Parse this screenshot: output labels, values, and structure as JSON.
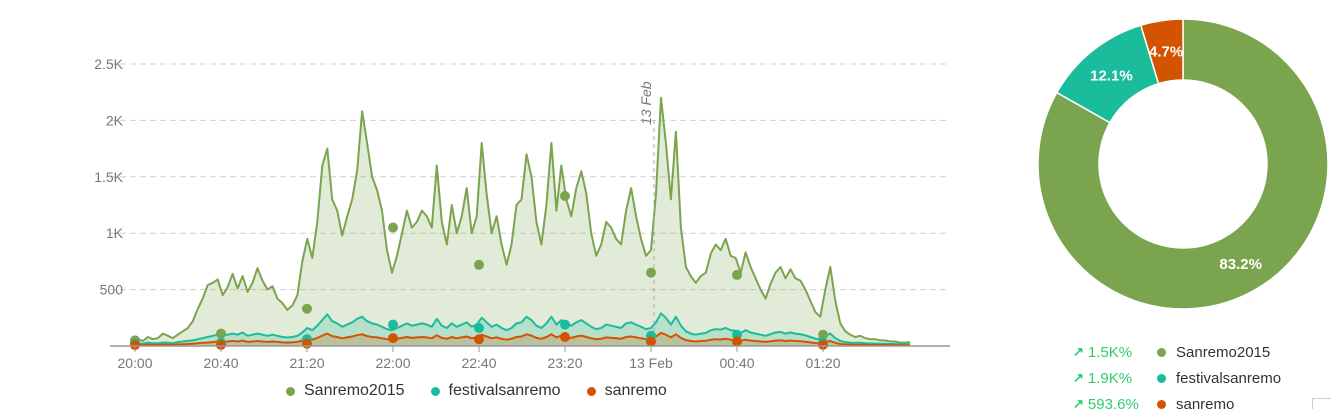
{
  "chart_data": [
    {
      "type": "area",
      "x_ticks": [
        "20:00",
        "20:40",
        "21:20",
        "22:00",
        "22:40",
        "23:20",
        "13 Feb",
        "00:40",
        "01:20"
      ],
      "y_ticks": [
        "500",
        "1K",
        "1.5K",
        "2K",
        "2.5K"
      ],
      "ylim": [
        0,
        2500
      ],
      "grid": true,
      "annotation": "13 Feb",
      "legend_position": "bottom",
      "series": [
        {
          "name": "Sanremo2015",
          "color": "#7ba44f",
          "values": [
            40,
            60,
            45,
            80,
            60,
            70,
            110,
            90,
            70,
            100,
            130,
            160,
            220,
            330,
            420,
            540,
            560,
            590,
            450,
            520,
            640,
            510,
            620,
            480,
            560,
            690,
            580,
            500,
            530,
            420,
            380,
            320,
            360,
            450,
            750,
            950,
            780,
            1100,
            1600,
            1750,
            1300,
            1200,
            980,
            1150,
            1300,
            1550,
            2080,
            1800,
            1500,
            1380,
            1200,
            850,
            650,
            800,
            1000,
            1200,
            1050,
            1100,
            1200,
            1150,
            1050,
            1600,
            1100,
            900,
            1250,
            1000,
            1150,
            1400,
            1000,
            1150,
            1800,
            1350,
            1000,
            1150,
            900,
            720,
            900,
            1250,
            1300,
            1700,
            1500,
            1100,
            900,
            1250,
            1800,
            1200,
            1600,
            1300,
            1150,
            1400,
            1550,
            1350,
            1000,
            800,
            900,
            1100,
            1050,
            950,
            900,
            1200,
            1400,
            1150,
            950,
            800,
            850,
            1350,
            2200,
            1800,
            1300,
            1900,
            1050,
            700,
            620,
            560,
            620,
            650,
            820,
            900,
            850,
            950,
            800,
            780,
            650,
            830,
            700,
            600,
            500,
            420,
            550,
            650,
            700,
            600,
            680,
            600,
            580,
            500,
            400,
            300,
            260,
            500,
            700,
            400,
            200,
            130,
            100,
            80,
            90,
            70,
            60,
            60,
            50,
            50,
            40,
            40,
            30,
            30,
            35
          ]
        },
        {
          "name": "festivalsanremo",
          "color": "#1abc9c",
          "values": [
            20,
            25,
            20,
            30,
            25,
            25,
            30,
            30,
            25,
            35,
            40,
            45,
            50,
            60,
            70,
            80,
            90,
            100,
            90,
            100,
            110,
            100,
            120,
            90,
            100,
            110,
            100,
            90,
            100,
            90,
            80,
            75,
            80,
            90,
            120,
            160,
            140,
            180,
            230,
            280,
            220,
            200,
            170,
            190,
            210,
            240,
            260,
            220,
            200,
            190,
            170,
            150,
            140,
            160,
            180,
            200,
            180,
            190,
            200,
            190,
            170,
            240,
            180,
            160,
            200,
            170,
            190,
            210,
            170,
            190,
            250,
            210,
            170,
            190,
            160,
            140,
            160,
            200,
            210,
            260,
            230,
            180,
            160,
            200,
            260,
            190,
            230,
            200,
            180,
            210,
            230,
            200,
            170,
            150,
            160,
            190,
            180,
            170,
            160,
            200,
            210,
            190,
            170,
            150,
            160,
            210,
            290,
            250,
            190,
            260,
            180,
            130,
            110,
            100,
            110,
            115,
            140,
            150,
            145,
            160,
            140,
            135,
            115,
            140,
            120,
            110,
            100,
            90,
            105,
            120,
            125,
            110,
            120,
            110,
            105,
            95,
            80,
            65,
            60,
            90,
            110,
            70,
            45,
            35,
            30,
            28,
            28,
            25,
            22,
            22,
            20,
            20,
            18,
            18,
            15,
            15,
            15
          ]
        },
        {
          "name": "sanremo",
          "color": "#d35400",
          "values": [
            8,
            10,
            8,
            12,
            10,
            10,
            12,
            12,
            10,
            14,
            16,
            18,
            20,
            24,
            28,
            30,
            35,
            40,
            35,
            40,
            45,
            40,
            48,
            36,
            40,
            44,
            40,
            36,
            40,
            36,
            32,
            30,
            32,
            36,
            48,
            64,
            56,
            72,
            92,
            110,
            88,
            80,
            68,
            76,
            84,
            96,
            104,
            88,
            80,
            76,
            68,
            60,
            56,
            64,
            72,
            80,
            72,
            76,
            80,
            76,
            68,
            96,
            72,
            64,
            80,
            68,
            76,
            84,
            68,
            76,
            100,
            84,
            68,
            76,
            64,
            56,
            64,
            80,
            84,
            104,
            92,
            72,
            64,
            80,
            104,
            76,
            92,
            80,
            72,
            84,
            92,
            80,
            68,
            60,
            64,
            76,
            72,
            68,
            64,
            80,
            84,
            76,
            68,
            60,
            64,
            84,
            116,
            100,
            76,
            104,
            72,
            52,
            44,
            40,
            44,
            46,
            56,
            60,
            58,
            64,
            56,
            54,
            46,
            56,
            48,
            44,
            40,
            36,
            42,
            48,
            50,
            44,
            48,
            44,
            42,
            38,
            32,
            26,
            24,
            36,
            44,
            28,
            18,
            14,
            12,
            11,
            11,
            10,
            9,
            9,
            8,
            8,
            7,
            7,
            6,
            6,
            6
          ]
        }
      ],
      "markers_x": [
        "20:00",
        "20:40",
        "21:20",
        "22:00",
        "22:40",
        "23:20",
        "13 Feb",
        "00:40",
        "01:20"
      ],
      "marker_values": {
        "Sanremo2015": [
          50,
          110,
          330,
          1050,
          720,
          1330,
          650,
          630,
          100
        ],
        "festivalsanremo": [
          20,
          30,
          60,
          190,
          160,
          190,
          90,
          100,
          30
        ],
        "sanremo": [
          8,
          10,
          20,
          70,
          60,
          80,
          40,
          40,
          10
        ]
      }
    },
    {
      "type": "pie",
      "donut": true,
      "slices": [
        {
          "name": "Sanremo2015",
          "value": 83.2,
          "label": "83.2%",
          "color": "#7ba44f"
        },
        {
          "name": "festivalsanremo",
          "value": 12.1,
          "label": "12.1%",
          "color": "#1abc9c"
        },
        {
          "name": "sanremo",
          "value": 4.7,
          "label": "4.7%",
          "color": "#d35400"
        }
      ]
    }
  ],
  "legend": [
    {
      "name": "Sanremo2015",
      "color": "#7ba44f"
    },
    {
      "name": "festivalsanremo",
      "color": "#1abc9c"
    },
    {
      "name": "sanremo",
      "color": "#d35400"
    }
  ],
  "stats": [
    {
      "change": "1.5K%",
      "name": "Sanremo2015",
      "color": "#7ba44f"
    },
    {
      "change": "1.9K%",
      "name": "festivalsanremo",
      "color": "#1abc9c"
    },
    {
      "change": "593.6%",
      "name": "sanremo",
      "color": "#d35400"
    }
  ]
}
